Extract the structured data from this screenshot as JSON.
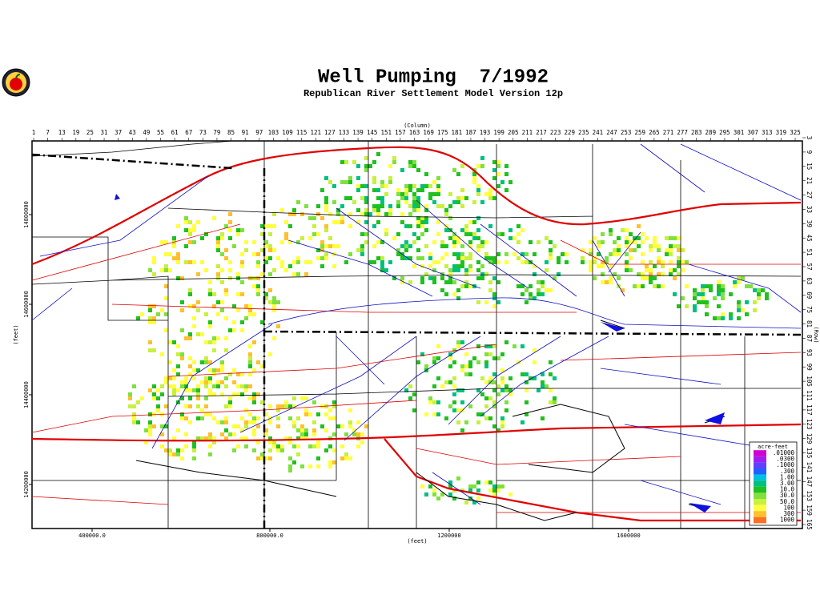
{
  "header": {
    "title": "Well Pumping  7/1992",
    "subtitle": "Republican River Settlement Model Version 12p"
  },
  "top_axis": {
    "label": "(Column)",
    "ticks": [
      "1",
      "7",
      "13",
      "19",
      "25",
      "31",
      "37",
      "43",
      "49",
      "55",
      "61",
      "67",
      "73",
      "79",
      "85",
      "91",
      "97",
      "103",
      "109",
      "115",
      "121",
      "127",
      "133",
      "139",
      "145",
      "151",
      "157",
      "163",
      "169",
      "175",
      "181",
      "187",
      "193",
      "199",
      "205",
      "211",
      "217",
      "223",
      "229",
      "235",
      "241",
      "247",
      "253",
      "259",
      "265",
      "271",
      "277",
      "283",
      "289",
      "295",
      "301",
      "307",
      "313",
      "319",
      "325"
    ]
  },
  "right_axis": {
    "label": "(Row)",
    "ticks": [
      "3",
      "9",
      "15",
      "21",
      "27",
      "33",
      "39",
      "45",
      "51",
      "57",
      "63",
      "69",
      "75",
      "81",
      "87",
      "93",
      "99",
      "105",
      "111",
      "117",
      "123",
      "129",
      "135",
      "141",
      "147",
      "153",
      "159",
      "165"
    ]
  },
  "bottom_axis": {
    "label": "(feet)",
    "ticks": [
      "400000.0",
      "800000.0",
      "1200000",
      "1600000"
    ]
  },
  "left_axis": {
    "label": "(feet)",
    "ticks": [
      "14800000",
      "14600000",
      "14400000",
      "14200000"
    ]
  },
  "legend": {
    "title": "acre-feet",
    "items": [
      {
        "label": ".01000",
        "color": "#d000d0"
      },
      {
        "label": ".0300",
        "color": "#a020f0"
      },
      {
        "label": ".1000",
        "color": "#6040ff"
      },
      {
        "label": ".300",
        "color": "#2060ff"
      },
      {
        "label": "1.00",
        "color": "#00c0e0"
      },
      {
        "label": "3.00",
        "color": "#00c080"
      },
      {
        "label": "10.0",
        "color": "#20c020"
      },
      {
        "label": "30.0",
        "color": "#80e040"
      },
      {
        "label": "50.0",
        "color": "#c8f040"
      },
      {
        "label": "100",
        "color": "#ffff40"
      },
      {
        "label": "300",
        "color": "#ffc030"
      },
      {
        "label": "1000",
        "color": "#ff7020"
      }
    ]
  }
}
